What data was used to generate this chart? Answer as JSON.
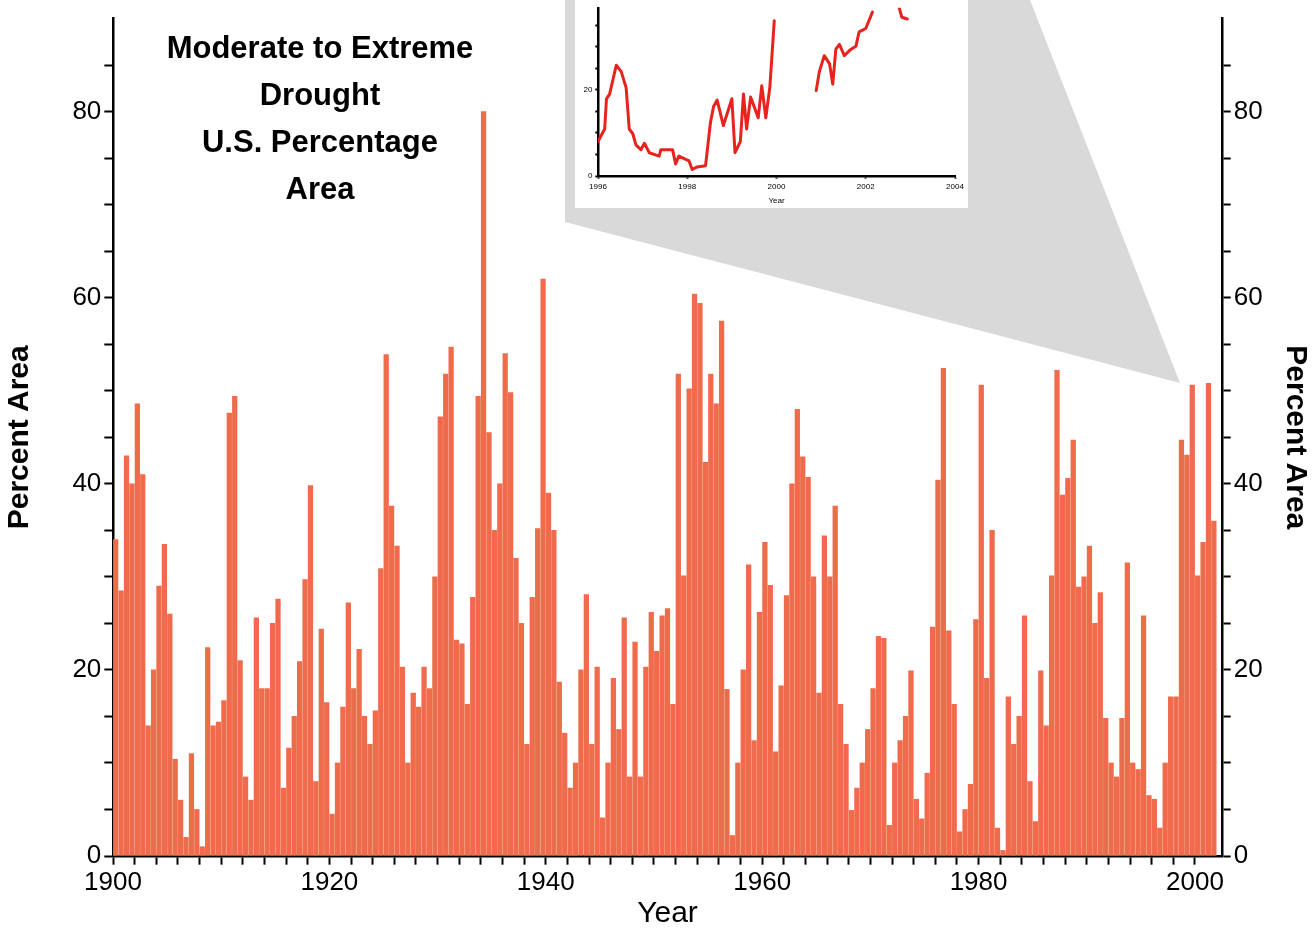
{
  "chart_data": [
    {
      "type": "bar",
      "title": "Moderate to Extreme\nDrought\nU.S. Percentage\nArea",
      "xlabel": "Year",
      "ylabel": "Percent Area",
      "y2label": "Percent Area",
      "color": "#ef6b4b",
      "grid": false,
      "legend": false,
      "x": [
        1900.25,
        1900.75,
        1901.25,
        1901.75,
        1902.25,
        1902.75,
        1903.25,
        1903.75,
        1904.25,
        1904.75,
        1905.25,
        1905.75,
        1906.25,
        1906.75,
        1907.25,
        1907.75,
        1908.25,
        1908.75,
        1909.25,
        1909.75,
        1910.25,
        1910.75,
        1911.25,
        1911.75,
        1912.25,
        1912.75,
        1913.25,
        1913.75,
        1914.25,
        1914.75,
        1915.25,
        1915.75,
        1916.25,
        1916.75,
        1917.25,
        1917.75,
        1918.25,
        1918.75,
        1919.25,
        1919.75,
        1920.25,
        1920.75,
        1921.25,
        1921.75,
        1922.25,
        1922.75,
        1923.25,
        1923.75,
        1924.25,
        1924.75,
        1925.25,
        1925.75,
        1926.25,
        1926.75,
        1927.25,
        1927.75,
        1928.25,
        1928.75,
        1929.25,
        1929.75,
        1930.25,
        1930.75,
        1931.25,
        1931.75,
        1932.25,
        1932.75,
        1933.25,
        1933.75,
        1934.25,
        1934.75,
        1935.25,
        1935.75,
        1936.25,
        1936.75,
        1937.25,
        1937.75,
        1938.25,
        1938.75,
        1939.25,
        1939.75,
        1940.25,
        1940.75,
        1941.25,
        1941.75,
        1942.25,
        1942.75,
        1943.25,
        1943.75,
        1944.25,
        1944.75,
        1945.25,
        1945.75,
        1946.25,
        1946.75,
        1947.25,
        1947.75,
        1948.25,
        1948.75,
        1949.25,
        1949.75,
        1950.25,
        1950.75,
        1951.25,
        1951.75,
        1952.25,
        1952.75,
        1953.25,
        1953.75,
        1954.25,
        1954.75,
        1955.25,
        1955.75,
        1956.25,
        1956.75,
        1957.25,
        1957.75,
        1958.25,
        1958.75,
        1959.25,
        1959.75,
        1960.25,
        1960.75,
        1961.25,
        1961.75,
        1962.25,
        1962.75,
        1963.25,
        1963.75,
        1964.25,
        1964.75,
        1965.25,
        1965.75,
        1966.25,
        1966.75,
        1967.25,
        1967.75,
        1968.25,
        1968.75,
        1969.25,
        1969.75,
        1970.25,
        1970.75,
        1971.25,
        1971.75,
        1972.25,
        1972.75,
        1973.25,
        1973.75,
        1974.25,
        1974.75,
        1975.25,
        1975.75,
        1976.25,
        1976.75,
        1977.25,
        1977.75,
        1978.25,
        1978.75,
        1979.25,
        1979.75,
        1980.25,
        1980.75,
        1981.25,
        1981.75,
        1982.25,
        1982.75,
        1983.25,
        1983.75,
        1984.25,
        1984.75,
        1985.25,
        1985.75,
        1986.25,
        1986.75,
        1987.25,
        1987.75,
        1988.25,
        1988.75,
        1989.25,
        1989.75,
        1990.25,
        1990.75,
        1991.25,
        1991.75,
        1992.25,
        1992.75,
        1993.25,
        1993.75,
        1994.25,
        1994.75,
        1995.25,
        1995.75,
        1996.25,
        1996.75,
        1997.25,
        1997.75,
        1998.25,
        1998.75,
        1999.25,
        1999.75,
        2000.25,
        2000.75,
        2001.25,
        2001.75
      ],
      "values": [
        34,
        28.5,
        43,
        40,
        48.6,
        41,
        14,
        20,
        29,
        33.5,
        26,
        10.4,
        6,
        2,
        11,
        5,
        1,
        22.4,
        14,
        14.4,
        16.7,
        47.6,
        49.4,
        21,
        8.5,
        6,
        25.6,
        18,
        18,
        25,
        27.6,
        7.3,
        11.6,
        15,
        20.9,
        29.7,
        39.8,
        8,
        24.4,
        16.5,
        4.5,
        10,
        16,
        27.2,
        18,
        22.2,
        15,
        12,
        15.6,
        30.9,
        53.9,
        37.6,
        33.3,
        20.3,
        10,
        17.5,
        16,
        20.3,
        18,
        30,
        47.2,
        51.8,
        54.7,
        23.2,
        22.8,
        16.3,
        27.8,
        49.4,
        80,
        45.5,
        35,
        40,
        54,
        49.8,
        32,
        25,
        12,
        27.8,
        35.2,
        62,
        39,
        35,
        18.7,
        13.2,
        7.3,
        10,
        20,
        28.1,
        12,
        20.3,
        4.1,
        10,
        19.1,
        13.6,
        25.6,
        8.5,
        23,
        8.5,
        20.3,
        26.2,
        22,
        25.8,
        26.6,
        16.3,
        51.8,
        30.1,
        50.2,
        60.4,
        59.4,
        42.3,
        51.8,
        48.6,
        57.5,
        17.9,
        2.2,
        10,
        20,
        31.3,
        12.4,
        26.2,
        33.7,
        29.1,
        11.2,
        18.3,
        28,
        40,
        48,
        42.9,
        40.7,
        30,
        17.5,
        34.4,
        30,
        37.6,
        16.3,
        12,
        4.9,
        7.3,
        10,
        13.6,
        18,
        23.6,
        23.4,
        3.3,
        10,
        12.4,
        15,
        19.9,
        6.1,
        4,
        8.9,
        24.6,
        40.4,
        52.4,
        24.2,
        16.3,
        2.6,
        5,
        7.7,
        25.4,
        50.6,
        19.1,
        35,
        3,
        0.6,
        17.1,
        12,
        15,
        25.8,
        8,
        3.7,
        19.9,
        14,
        30.1,
        52.2,
        38.8,
        40.6,
        44.7,
        28.9,
        30,
        33.3,
        25,
        28.3,
        14.8,
        10,
        8.5,
        14.8,
        31.5,
        10,
        9.3,
        25.8,
        6.5,
        6.1,
        3,
        10,
        17.1,
        17.1,
        44.7,
        43.1,
        50.6,
        30.1,
        33.7,
        50.8,
        36
      ],
      "xlim": [
        1900,
        2002.5
      ],
      "xticks": [
        1900,
        {
          "value": 1902,
          "label": null
        },
        {
          "value": 1904,
          "label": null
        },
        {
          "value": 1906,
          "label": null
        },
        {
          "value": 1908,
          "label": null
        },
        {
          "value": 1910,
          "label": null
        },
        {
          "value": 1912,
          "label": null
        },
        {
          "value": 1914,
          "label": null
        },
        {
          "value": 1916,
          "label": null
        },
        {
          "value": 1918,
          "label": null
        },
        1920,
        {
          "value": 1922,
          "label": null
        },
        {
          "value": 1924,
          "label": null
        },
        {
          "value": 1926,
          "label": null
        },
        {
          "value": 1928,
          "label": null
        },
        {
          "value": 1930,
          "label": null
        },
        {
          "value": 1932,
          "label": null
        },
        {
          "value": 1934,
          "label": null
        },
        {
          "value": 1936,
          "label": null
        },
        {
          "value": 1938,
          "label": null
        },
        1940,
        {
          "value": 1942,
          "label": null
        },
        {
          "value": 1944,
          "label": null
        },
        {
          "value": 1946,
          "label": null
        },
        {
          "value": 1948,
          "label": null
        },
        {
          "value": 1950,
          "label": null
        },
        {
          "value": 1952,
          "label": null
        },
        {
          "value": 1954,
          "label": null
        },
        {
          "value": 1956,
          "label": null
        },
        {
          "value": 1958,
          "label": null
        },
        1960,
        {
          "value": 1962,
          "label": null
        },
        {
          "value": 1964,
          "label": null
        },
        {
          "value": 1966,
          "label": null
        },
        {
          "value": 1968,
          "label": null
        },
        {
          "value": 1970,
          "label": null
        },
        {
          "value": 1972,
          "label": null
        },
        {
          "value": 1974,
          "label": null
        },
        {
          "value": 1976,
          "label": null
        },
        {
          "value": 1978,
          "label": null
        },
        1980,
        {
          "value": 1982,
          "label": null
        },
        {
          "value": 1984,
          "label": null
        },
        {
          "value": 1986,
          "label": null
        },
        {
          "value": 1988,
          "label": null
        },
        {
          "value": 1990,
          "label": null
        },
        {
          "value": 1992,
          "label": null
        },
        {
          "value": 1994,
          "label": null
        },
        {
          "value": 1996,
          "label": null
        },
        {
          "value": 1998,
          "label": null
        },
        2000
      ],
      "ylim": [
        0,
        90
      ],
      "yticks": [
        0,
        {
          "value": 5,
          "label": null
        },
        {
          "value": 10,
          "label": null
        },
        {
          "value": 15,
          "label": null
        },
        20,
        {
          "value": 25,
          "label": null
        },
        {
          "value": 30,
          "label": null
        },
        {
          "value": 35,
          "label": null
        },
        40,
        {
          "value": 45,
          "label": null
        },
        {
          "value": 50,
          "label": null
        },
        {
          "value": 55,
          "label": null
        },
        60,
        {
          "value": 65,
          "label": null
        },
        {
          "value": 70,
          "label": null
        },
        {
          "value": 75,
          "label": null
        },
        80,
        {
          "value": 85,
          "label": null
        }
      ],
      "y2lim": [
        0,
        90
      ],
      "y2ticks": [
        0,
        {
          "value": 5,
          "label": null
        },
        {
          "value": 10,
          "label": null
        },
        {
          "value": 15,
          "label": null
        },
        20,
        {
          "value": 25,
          "label": null
        },
        {
          "value": 30,
          "label": null
        },
        {
          "value": 35,
          "label": null
        },
        40,
        {
          "value": 45,
          "label": null
        },
        {
          "value": 50,
          "label": null
        },
        {
          "value": 55,
          "label": null
        },
        60,
        {
          "value": 65,
          "label": null
        },
        {
          "value": 70,
          "label": null
        },
        {
          "value": 75,
          "label": null
        },
        80,
        {
          "value": 85,
          "label": null
        }
      ]
    },
    {
      "type": "line",
      "xlabel": "Year",
      "color": "#e8231e",
      "grid": false,
      "legend": false,
      "x": [
        1996.0,
        1996.15,
        1996.19,
        1996.26,
        1996.41,
        1996.52,
        1996.63,
        1996.7,
        1996.78,
        1996.85,
        1996.96,
        1997.04,
        1997.15,
        1997.37,
        1997.41,
        1997.67,
        1997.74,
        1997.81,
        1998.04,
        1998.11,
        1998.22,
        1998.41,
        1998.52,
        1998.59,
        1998.67,
        1998.81,
        1999.0,
        1999.07,
        1999.19,
        1999.26,
        1999.33,
        1999.42,
        1999.59,
        1999.67,
        1999.76,
        1999.85,
        1999.95,
        2000.4,
        2000.89,
        2000.96,
        2001.07,
        2001.19,
        2001.26,
        2001.33,
        2001.41,
        2001.52,
        2001.67,
        2001.78,
        2001.85,
        2002.0,
        2002.15,
        2002.5,
        2002.75,
        2002.81,
        2002.93
      ],
      "values": [
        8.0,
        10.9,
        17.9,
        19,
        25.7,
        24.2,
        20.5,
        10.9,
        9.8,
        7.2,
        6.1,
        7.6,
        5.4,
        4.6,
        6.1,
        6.1,
        2.8,
        4.6,
        3.5,
        1.5,
        2.1,
        2.4,
        12.4,
        16.1,
        17.6,
        11.7,
        17.9,
        5.4,
        8,
        19,
        10.9,
        18.3,
        13.5,
        20.9,
        13.5,
        20.5,
        36,
        null,
        19.8,
        24.2,
        27.9,
        26,
        21.3,
        29.4,
        30.5,
        27.9,
        29.4,
        30.1,
        33.4,
        34.2,
        38,
        null,
        39,
        36.8,
        36.4
      ],
      "xlim": [
        1996,
        2004
      ],
      "xticks": [
        1996,
        1998,
        2000,
        2002,
        2004
      ],
      "ylim": [
        0,
        39
      ],
      "yticks": [
        0,
        {
          "value": 5,
          "label": null
        },
        {
          "value": 10,
          "label": null
        },
        {
          "value": 15,
          "label": null
        },
        20,
        {
          "value": 25,
          "label": null
        },
        {
          "value": 30,
          "label": null
        },
        {
          "value": 35,
          "label": null
        }
      ]
    }
  ]
}
